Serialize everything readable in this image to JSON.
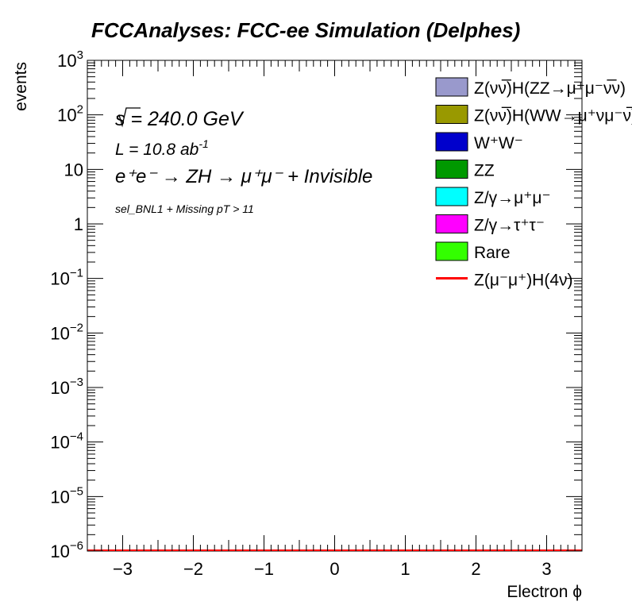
{
  "chart_data": {
    "type": "bar",
    "title": "FCCAnalyses: FCC-ee Simulation (Delphes)",
    "xlabel": "Electron ϕ",
    "ylabel": "events",
    "xlim": [
      -3.5,
      3.5
    ],
    "ylim": [
      1e-06,
      1000
    ],
    "y_scale": "log",
    "x_ticks": [
      -3,
      -2,
      -1,
      0,
      1,
      2,
      3
    ],
    "x_tick_labels": [
      "−3",
      "−2",
      "−1",
      "0",
      "1",
      "2",
      "3"
    ],
    "y_ticks": [
      {
        "base": "10",
        "exp": "−6"
      },
      {
        "base": "10",
        "exp": "−5"
      },
      {
        "base": "10",
        "exp": "−4"
      },
      {
        "base": "10",
        "exp": "−3"
      },
      {
        "base": "10",
        "exp": "−2"
      },
      {
        "base": "10",
        "exp": "−1"
      },
      {
        "base": "1",
        "exp": ""
      },
      {
        "base": "10",
        "exp": ""
      },
      {
        "base": "10",
        "exp": "2"
      },
      {
        "base": "10",
        "exp": "3"
      }
    ],
    "grid": false,
    "legend_position": "top-right",
    "annotations": {
      "sqrt_s": "s = 240.0 GeV",
      "lumi": "L = 10.8 ab",
      "lumi_exp": "-1",
      "process": "e⁺e⁻ → ZH → μ⁺μ⁻ + Invisible",
      "selection": "sel_BNL1 + Missing pT > 11"
    },
    "series": [
      {
        "name": "Z(νν̅)H(ZZ→μ⁺μ⁻ν̅ν)",
        "color": "#9999cc",
        "kind": "fill",
        "values": []
      },
      {
        "name": "Z(νν̅)H(WW→μ⁺νμ⁻ν̅)",
        "color": "#999900",
        "kind": "fill",
        "values": []
      },
      {
        "name": "W⁺W⁻",
        "color": "#0000cc",
        "kind": "fill",
        "values": []
      },
      {
        "name": "ZZ",
        "color": "#009900",
        "kind": "fill",
        "values": []
      },
      {
        "name": "Z/γ→μ⁺μ⁻",
        "color": "#00ffff",
        "kind": "fill",
        "values": []
      },
      {
        "name": "Z/γ→τ⁺τ⁻",
        "color": "#ff00ff",
        "kind": "fill",
        "values": []
      },
      {
        "name": "Rare",
        "color": "#33ff00",
        "kind": "fill",
        "values": []
      },
      {
        "name": "Z(μ⁻μ⁺)H(4ν)",
        "color": "#ff0000",
        "kind": "line",
        "values": []
      }
    ]
  }
}
